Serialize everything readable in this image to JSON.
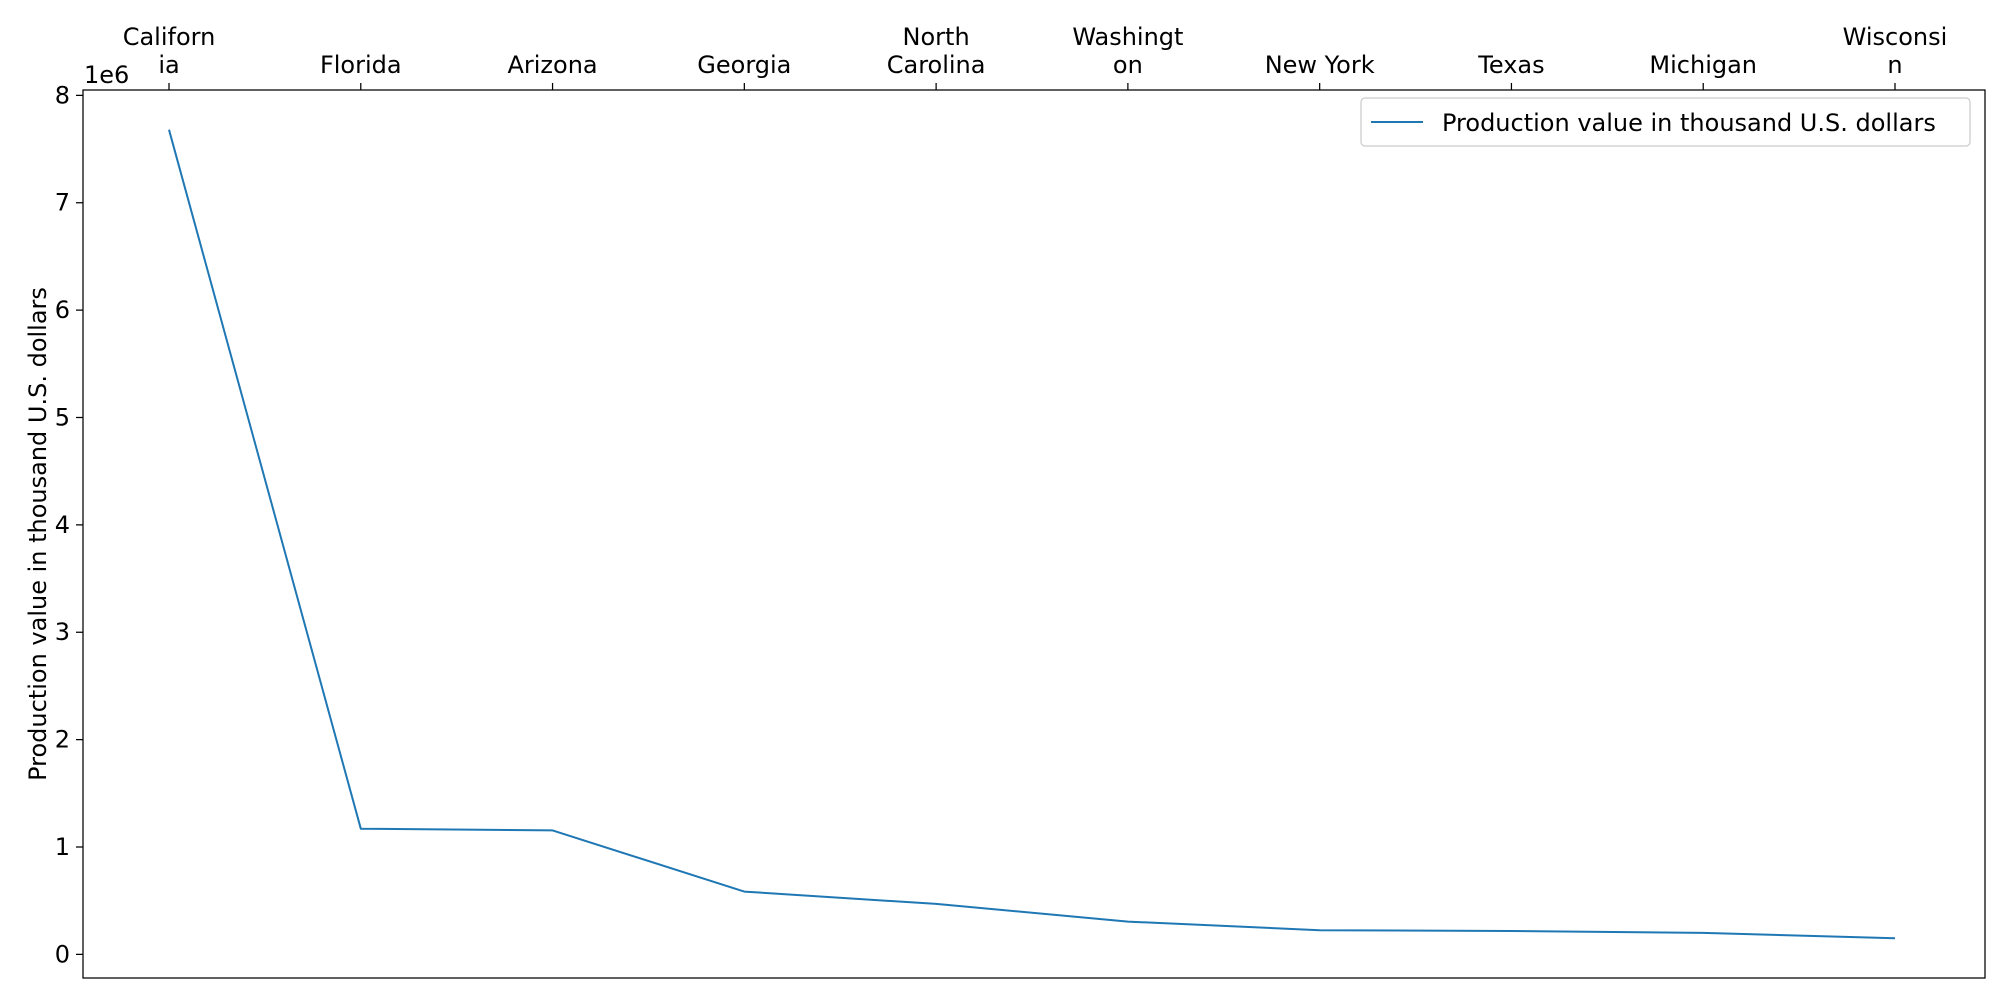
{
  "chart_data": {
    "type": "line",
    "categories": [
      "California",
      "Florida",
      "Arizona",
      "Georgia",
      "North Carolina",
      "Washington",
      "New York",
      "Texas",
      "Michigan",
      "Wisconsin"
    ],
    "tick_labels": [
      [
        "Californ",
        "ia"
      ],
      [
        "Florida"
      ],
      [
        "Arizona"
      ],
      [
        "Georgia"
      ],
      [
        "North",
        "Carolina"
      ],
      [
        "Washingt",
        "on"
      ],
      [
        "New York"
      ],
      [
        "Texas"
      ],
      [
        "Michigan"
      ],
      [
        "Wisconsi",
        "n"
      ]
    ],
    "series": [
      {
        "name": "Production value in thousand U.S. dollars",
        "values": [
          7680000,
          1170000,
          1155000,
          585000,
          470000,
          305000,
          225000,
          218000,
          200000,
          150000
        ],
        "color": "#1f77b4"
      }
    ],
    "ylabel": "Production value in thousand U.S. dollars",
    "xlabel": "",
    "y_offset_label": "1e6",
    "y_scale": 1000000,
    "yticks": [
      0,
      1,
      2,
      3,
      4,
      5,
      6,
      7,
      8
    ],
    "ylim": [
      -220000,
      8050000
    ],
    "x_axis_position": "top",
    "grid": false,
    "legend_position": "top-right"
  }
}
